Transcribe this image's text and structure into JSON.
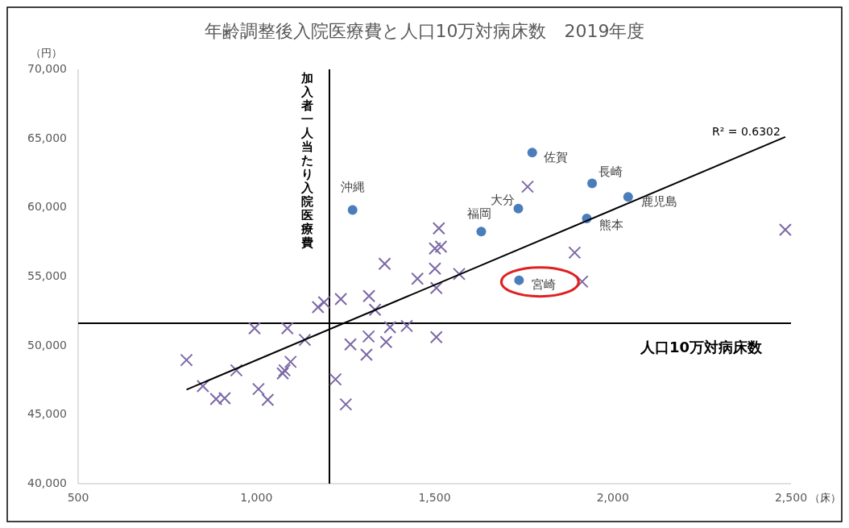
{
  "chart_data": {
    "type": "scatter",
    "title": "年齢調整後入院医療費と人口10万対病床数　2019年度",
    "xlabel": "（床）",
    "ylabel": "（円）",
    "xlim": [
      500,
      2500
    ],
    "xticks": [
      {
        "value": 500,
        "label": "500"
      },
      {
        "value": 1000,
        "label": "1,000"
      },
      {
        "value": 1500,
        "label": "1,500"
      },
      {
        "value": 2000,
        "label": "2,000"
      },
      {
        "value": 2500,
        "label": "2,500"
      }
    ],
    "ylim": [
      40000,
      70000
    ],
    "yticks": [
      {
        "value": 40000,
        "label": "40,000"
      },
      {
        "value": 45000,
        "label": "45,000"
      },
      {
        "value": 50000,
        "label": "50,000"
      },
      {
        "value": 55000,
        "label": "55,000"
      },
      {
        "value": 60000,
        "label": "60,000"
      },
      {
        "value": 65000,
        "label": "65,000"
      },
      {
        "value": 70000,
        "label": "70,000"
      }
    ],
    "grid": false,
    "series": [
      {
        "marker": "cross",
        "color": "#7b68a6",
        "x": [
          804,
          850,
          887,
          911,
          944,
          995,
          1006,
          1032,
          1074,
          1079,
          1096,
          1087,
          1136,
          1173,
          1190,
          1237,
          1222,
          1251,
          1264,
          1309,
          1315,
          1316,
          1333,
          1360,
          1364,
          1375,
          1422,
          1452,
          1501,
          1505,
          1505,
          1501,
          1518,
          1569,
          1512,
          1761,
          1893,
          1914,
          2484
        ],
        "values": [
          48950,
          47060,
          46130,
          46190,
          48210,
          51250,
          46850,
          46070,
          47980,
          48210,
          48820,
          51250,
          50410,
          52780,
          53130,
          53370,
          47550,
          45740,
          50080,
          49340,
          50660,
          53580,
          52590,
          55920,
          50260,
          51320,
          51420,
          54840,
          55570,
          54170,
          50610,
          57030,
          57160,
          55180,
          58490,
          61500,
          56730,
          54630,
          58390
        ]
      },
      {
        "marker": "circle",
        "color": "#4a7ebb",
        "x": [
          1270,
          1631,
          1735,
          1774,
          1942,
          2043,
          1927,
          1737
        ],
        "values": [
          59810,
          58260,
          59920,
          63970,
          61740,
          60760,
          59200,
          54730
        ]
      },
      {
        "type": "line",
        "color": "#000000",
        "x": [
          804,
          2484
        ],
        "values": [
          46810,
          65100
        ]
      }
    ],
    "ref_lines": [
      {
        "axis": "x",
        "value": 1205,
        "label": "加入者一人当たり入院医療費",
        "color": "#000000"
      },
      {
        "axis": "y",
        "value": 51620,
        "label": "人口10万対病床数",
        "color": "#000000"
      }
    ],
    "annotations": [
      {
        "text": "沖縄",
        "x": 1270,
        "y": 59810
      },
      {
        "text": "福岡",
        "x": 1631,
        "y": 58260
      },
      {
        "text": "大分",
        "x": 1735,
        "y": 59920
      },
      {
        "text": "佐賀",
        "x": 1774,
        "y": 63970
      },
      {
        "text": "長崎",
        "x": 1942,
        "y": 61740
      },
      {
        "text": "鹿児島",
        "x": 2043,
        "y": 60760
      },
      {
        "text": "熊本",
        "x": 1927,
        "y": 59200
      },
      {
        "text": "宮崎",
        "x": 1737,
        "y": 54730
      },
      {
        "text": "R² = 0.6302",
        "x": 2484,
        "y": 65100
      }
    ]
  }
}
